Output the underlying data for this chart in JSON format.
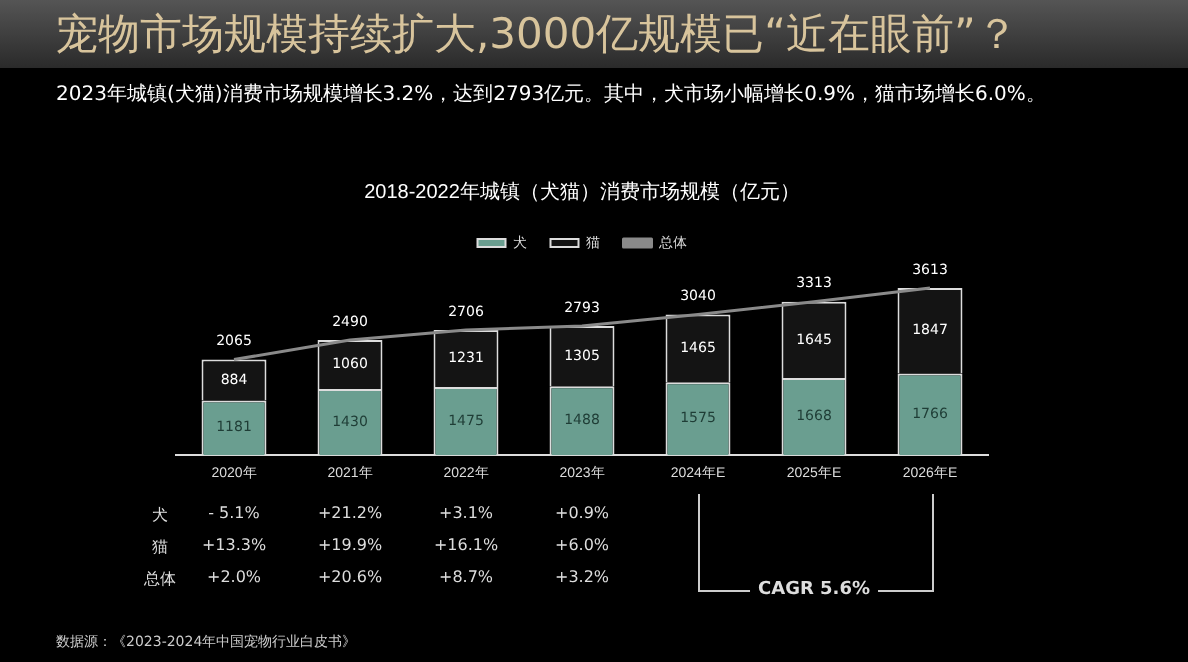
{
  "chart_data": {
    "type": "bar",
    "stacked": true,
    "title": "宠物市场规模持续扩大,3000亿规模已“近在眼前”？",
    "subtitle": "2023年城镇(犬猫)消费市场规模增长3.2%，达到2793亿元。其中，犬市场小幅增长0.9%，猫市场增长6.0%。",
    "categories": [
      "2020年",
      "2021年",
      "2022年",
      "2023年",
      "2024年E",
      "2025年E",
      "2026年E"
    ],
    "series": [
      {
        "name": "犬",
        "color": "#6a9e90",
        "values": [
          1181,
          1430,
          1475,
          1488,
          1575,
          1668,
          1766
        ]
      },
      {
        "name": "猫",
        "color": "#141414",
        "values": [
          884,
          1060,
          1231,
          1305,
          1465,
          1645,
          1847
        ]
      },
      {
        "name": "总体",
        "type": "line",
        "color": "#8a8a8a",
        "values": [
          2065,
          2490,
          2706,
          2793,
          3040,
          3313,
          3613
        ]
      }
    ],
    "data_labels": true,
    "tick_labels": "x",
    "legend": "top",
    "annotations": [
      "2018-2022年城镇（犬猫）消费市场规模（亿元）",
      "犬",
      "- 5.1%",
      "+21.2%",
      "+3.1%",
      "+0.9%",
      "猫",
      "+13.3%",
      "+19.9%",
      "+16.1%",
      "+6.0%",
      "总体",
      "+2.0%",
      "+20.6%",
      "+8.7%",
      "+3.2%",
      "CAGR 5.6%",
      "数据源：《2023-2024年中国宠物行业白皮书》"
    ]
  }
}
